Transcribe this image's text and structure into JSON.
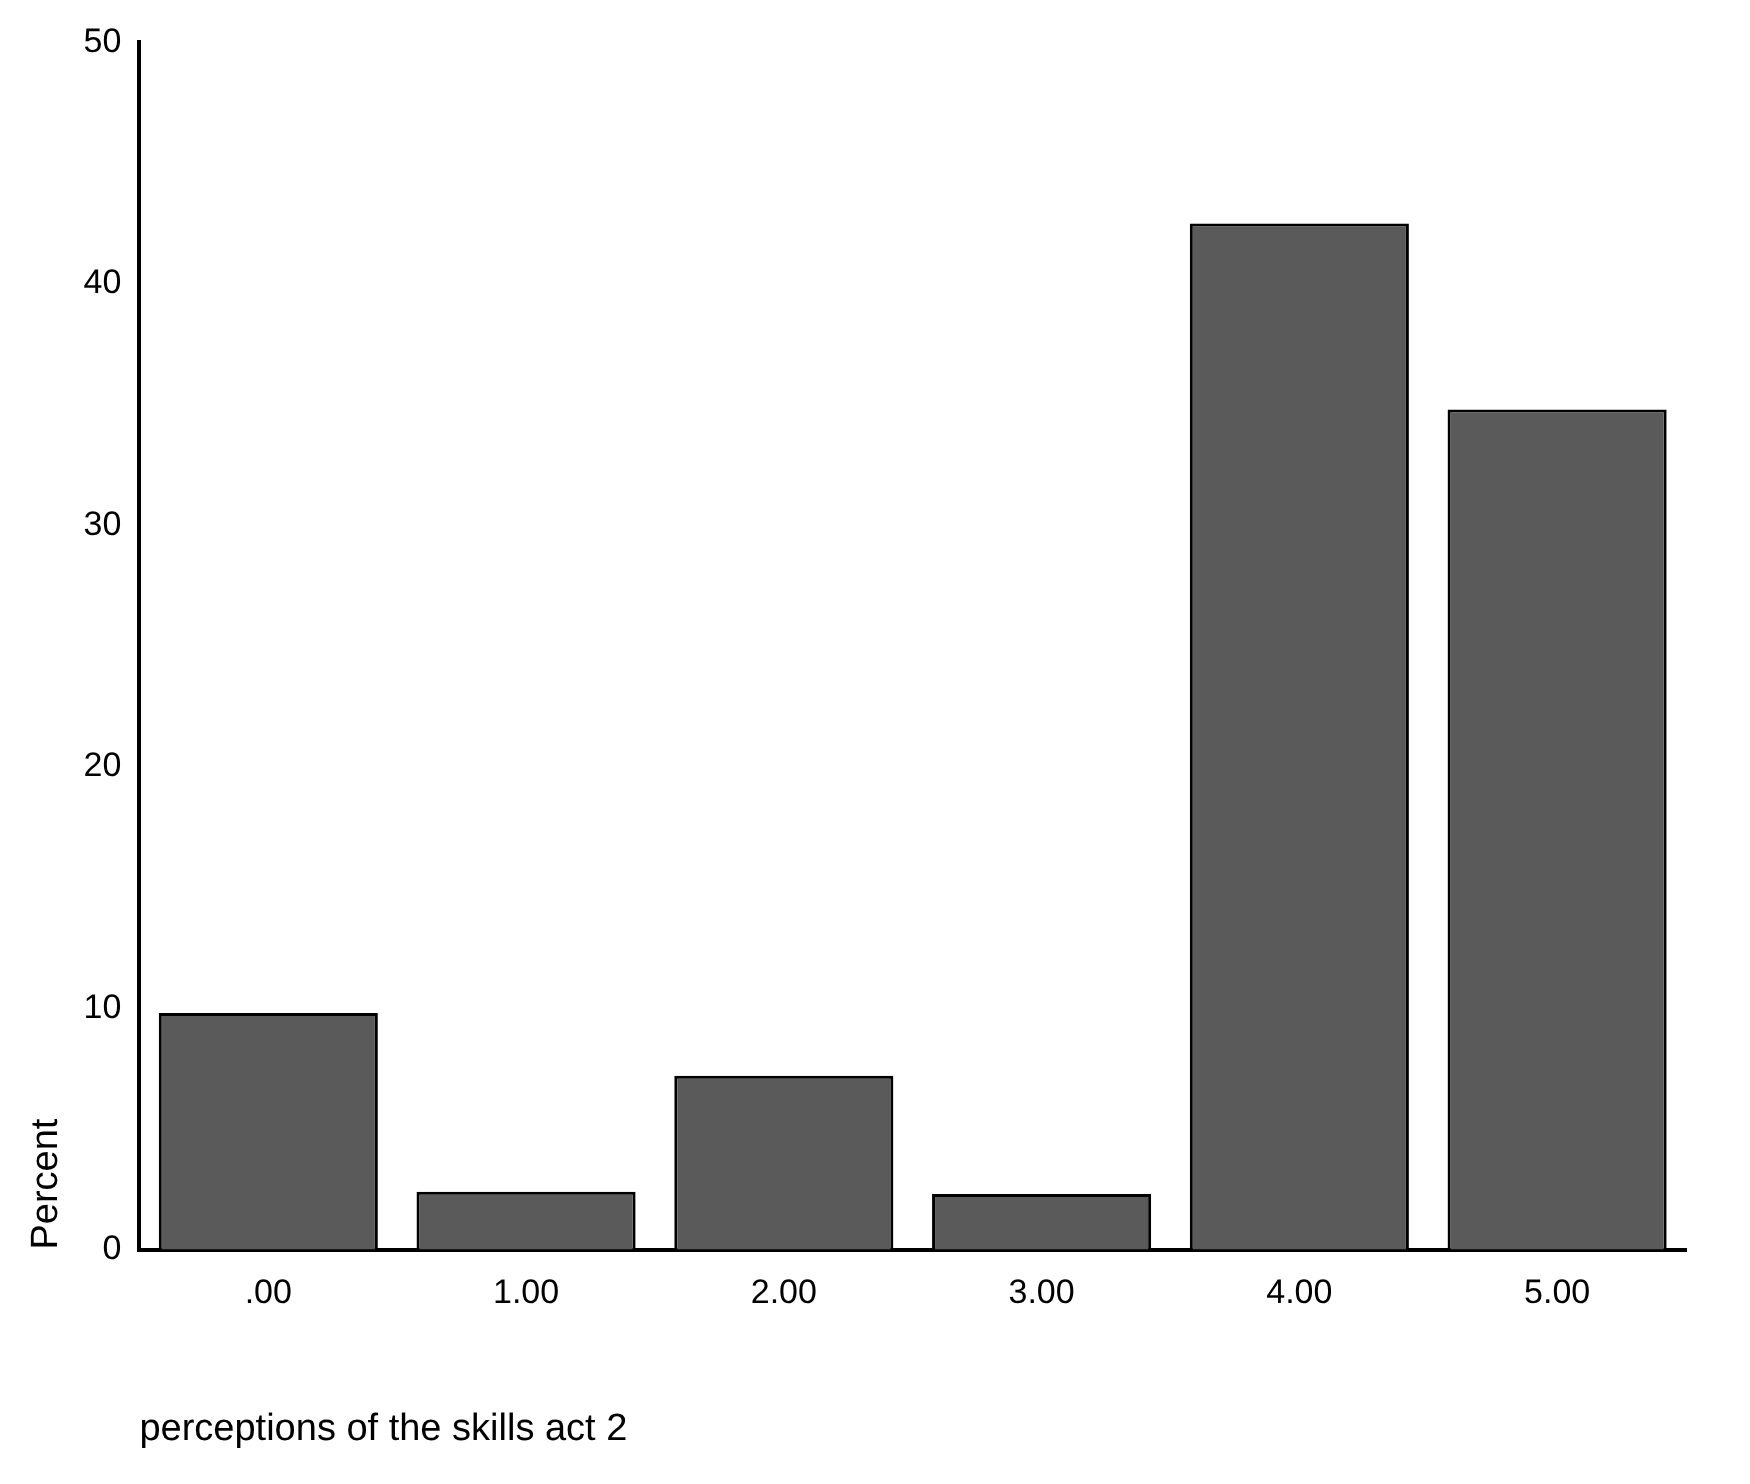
{
  "chart_data": {
    "type": "bar",
    "xlabel": "perceptions of the skills act 2",
    "ylabel": "Percent",
    "categories": [
      ".00",
      "1.00",
      "2.00",
      "3.00",
      "4.00",
      "5.00"
    ],
    "values": [
      9.8,
      2.4,
      7.2,
      2.3,
      42.5,
      34.8
    ],
    "color": "#5a5a5a",
    "ylim": [
      0,
      50
    ],
    "yticks": [
      0,
      10,
      20,
      30,
      40,
      50
    ],
    "grid": false,
    "legend": false
  }
}
